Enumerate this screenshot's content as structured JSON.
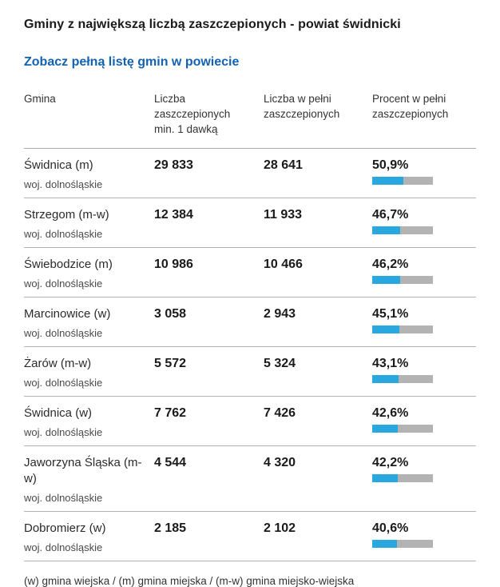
{
  "page": {
    "title": "Gminy z największą liczbą zaszczepionych - powiat świdnicki",
    "link_label": "Zobacz pełną listę gmin w powiecie",
    "footnote": "(w) gmina wiejska / (m) gmina miejska / (m-w) gmina miejsko-wiejska"
  },
  "colors": {
    "accent_blue": "#29a8df",
    "bar_gray": "#b3b3b3",
    "link_blue": "#1362b1"
  },
  "table": {
    "headers": [
      "Gmina",
      "Liczba zaszczepionych min. 1 dawką",
      "Liczba w pełni zaszczepionych",
      "Procent w pełni zaszczepionych"
    ],
    "rows": [
      {
        "name": "Świdnica (m)",
        "region": "woj. dolnośląskie",
        "vaccinated_min_1_dose": "29 833",
        "fully_vaccinated": "28 641",
        "percent_label": "50,9%",
        "percent_value": 50.9
      },
      {
        "name": "Strzegom (m-w)",
        "region": "woj. dolnośląskie",
        "vaccinated_min_1_dose": "12 384",
        "fully_vaccinated": "11 933",
        "percent_label": "46,7%",
        "percent_value": 46.7
      },
      {
        "name": "Świebodzice (m)",
        "region": "woj. dolnośląskie",
        "vaccinated_min_1_dose": "10 986",
        "fully_vaccinated": "10 466",
        "percent_label": "46,2%",
        "percent_value": 46.2
      },
      {
        "name": "Marcinowice (w)",
        "region": "woj. dolnośląskie",
        "vaccinated_min_1_dose": "3 058",
        "fully_vaccinated": "2 943",
        "percent_label": "45,1%",
        "percent_value": 45.1
      },
      {
        "name": "Żarów (m-w)",
        "region": "woj. dolnośląskie",
        "vaccinated_min_1_dose": "5 572",
        "fully_vaccinated": "5 324",
        "percent_label": "43,1%",
        "percent_value": 43.1
      },
      {
        "name": "Świdnica (w)",
        "region": "woj. dolnośląskie",
        "vaccinated_min_1_dose": "7 762",
        "fully_vaccinated": "7 426",
        "percent_label": "42,6%",
        "percent_value": 42.6
      },
      {
        "name": "Jaworzyna Śląska (m-w)",
        "region": "woj. dolnośląskie",
        "vaccinated_min_1_dose": "4 544",
        "fully_vaccinated": "4 320",
        "percent_label": "42,2%",
        "percent_value": 42.2
      },
      {
        "name": "Dobromierz (w)",
        "region": "woj. dolnośląskie",
        "vaccinated_min_1_dose": "2 185",
        "fully_vaccinated": "2 102",
        "percent_label": "40,6%",
        "percent_value": 40.6
      }
    ]
  },
  "chart_data": {
    "type": "bar",
    "categories": [
      "Świdnica (m)",
      "Strzegom (m-w)",
      "Świebodzice (m)",
      "Marcinowice (w)",
      "Żarów (m-w)",
      "Świdnica (w)",
      "Jaworzyna Śląska (m-w)",
      "Dobromierz (w)"
    ],
    "series": [
      {
        "name": "Liczba zaszczepionych min. 1 dawką",
        "values": [
          29833,
          12384,
          10986,
          3058,
          5572,
          7762,
          4544,
          2185
        ]
      },
      {
        "name": "Liczba w pełni zaszczepionych",
        "values": [
          28641,
          11933,
          10466,
          2943,
          5324,
          7426,
          4320,
          2102
        ]
      },
      {
        "name": "Procent w pełni zaszczepionych (%)",
        "values": [
          50.9,
          46.7,
          46.2,
          45.1,
          43.1,
          42.6,
          42.2,
          40.6
        ]
      }
    ],
    "title": "Gminy z największą liczbą zaszczepionych - powiat świdnicki",
    "xlabel": "Gmina",
    "ylabel": "",
    "ylim": [
      0,
      100
    ],
    "note": "percent bars rendered inline per row, fill relative to 100%"
  }
}
